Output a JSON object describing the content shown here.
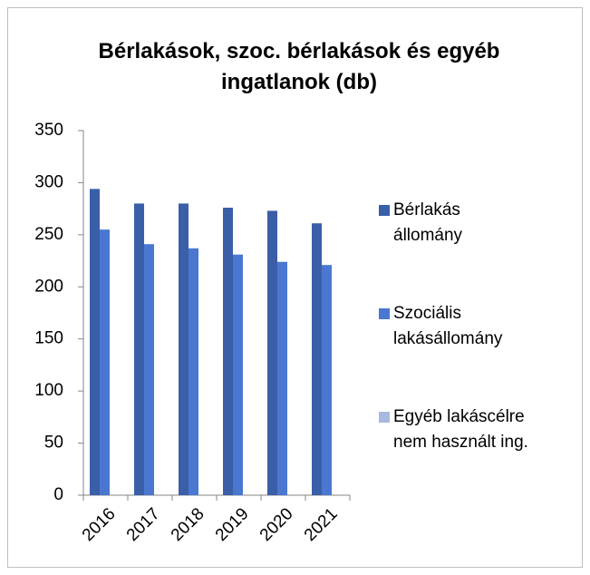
{
  "chart_data": {
    "type": "bar",
    "title": "Bérlakások, szoc. bérlakások és egyéb ingatlanok (db)",
    "categories": [
      "2016",
      "2017",
      "2018",
      "2019",
      "2020",
      "2021"
    ],
    "series": [
      {
        "name": "Bérlakás állomány",
        "color": "#3a5ea8",
        "values": [
          294,
          280,
          280,
          276,
          273,
          261
        ]
      },
      {
        "name": "Szociális lakásállomány",
        "color": "#4a78d0",
        "values": [
          255,
          241,
          237,
          231,
          224,
          221
        ]
      },
      {
        "name": "Egyéb lakáscélre nem használt ing.",
        "color": "#a9b8e0",
        "values": [
          0,
          0,
          0,
          0,
          0,
          0
        ]
      }
    ],
    "ylim": [
      0,
      350
    ],
    "yticks": [
      0,
      50,
      100,
      150,
      200,
      250,
      300,
      350
    ],
    "grid": false,
    "legend": "right"
  }
}
